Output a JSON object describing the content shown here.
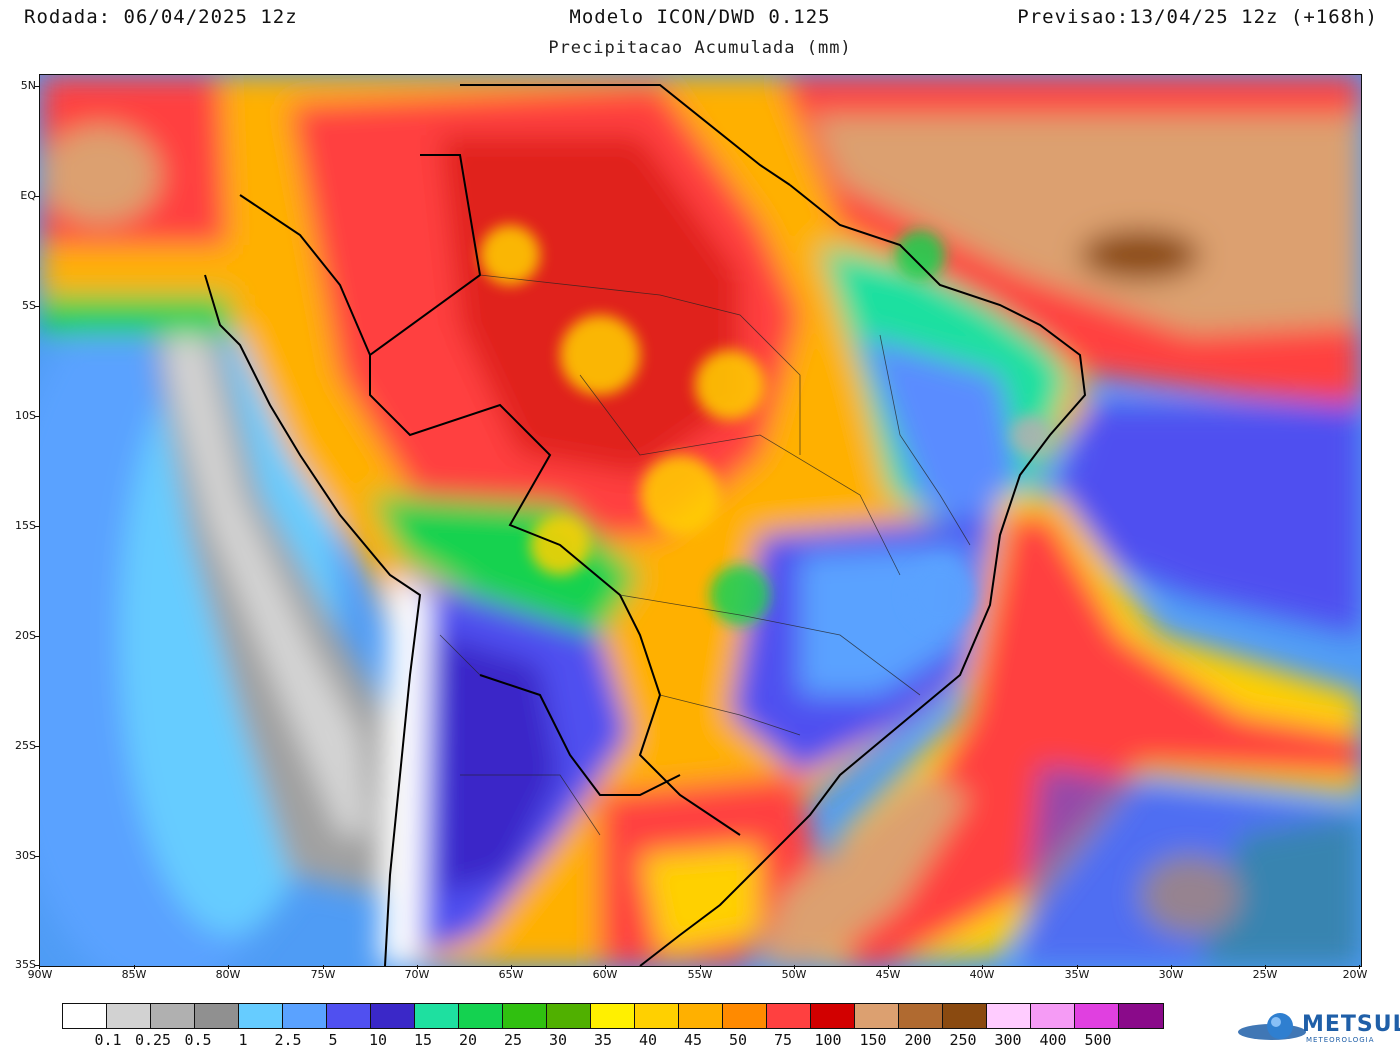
{
  "header": {
    "run": "Rodada: 06/04/2025 12z",
    "model": "Modelo ICON/DWD 0.125",
    "forecast": "Previsao:13/04/25 12z (+168h)",
    "field": "Precipitacao Acumulada (mm)"
  },
  "axes": {
    "lat_labels": [
      "5N",
      "EQ",
      "5S",
      "10S",
      "15S",
      "20S",
      "25S",
      "30S",
      "35S"
    ],
    "lon_labels": [
      "90W",
      "85W",
      "80W",
      "75W",
      "70W",
      "65W",
      "60W",
      "55W",
      "50W",
      "45W",
      "40W",
      "35W",
      "30W",
      "25W",
      "20W"
    ]
  },
  "colorbar": {
    "labels": [
      "0.1",
      "0.25",
      "0.5",
      "1",
      "2.5",
      "5",
      "10",
      "15",
      "20",
      "25",
      "30",
      "35",
      "40",
      "45",
      "50",
      "75",
      "100",
      "150",
      "200",
      "250",
      "300",
      "400",
      "500"
    ],
    "colors": [
      "#ffffff",
      "#d2d2d2",
      "#b0b0b0",
      "#909090",
      "#66ccff",
      "#5aa2ff",
      "#5050f0",
      "#3a28c8",
      "#1ee0a0",
      "#14d250",
      "#30c010",
      "#50b000",
      "#fff000",
      "#ffd000",
      "#ffb000",
      "#ff8a00",
      "#ff4040",
      "#d20000",
      "#dca070",
      "#b06a30",
      "#8a4a10",
      "#ffccff",
      "#f59bf5",
      "#e040e0",
      "#8a0a8a"
    ]
  },
  "logo": {
    "name": "METSUL",
    "sub": "METEOROLOGIA"
  }
}
